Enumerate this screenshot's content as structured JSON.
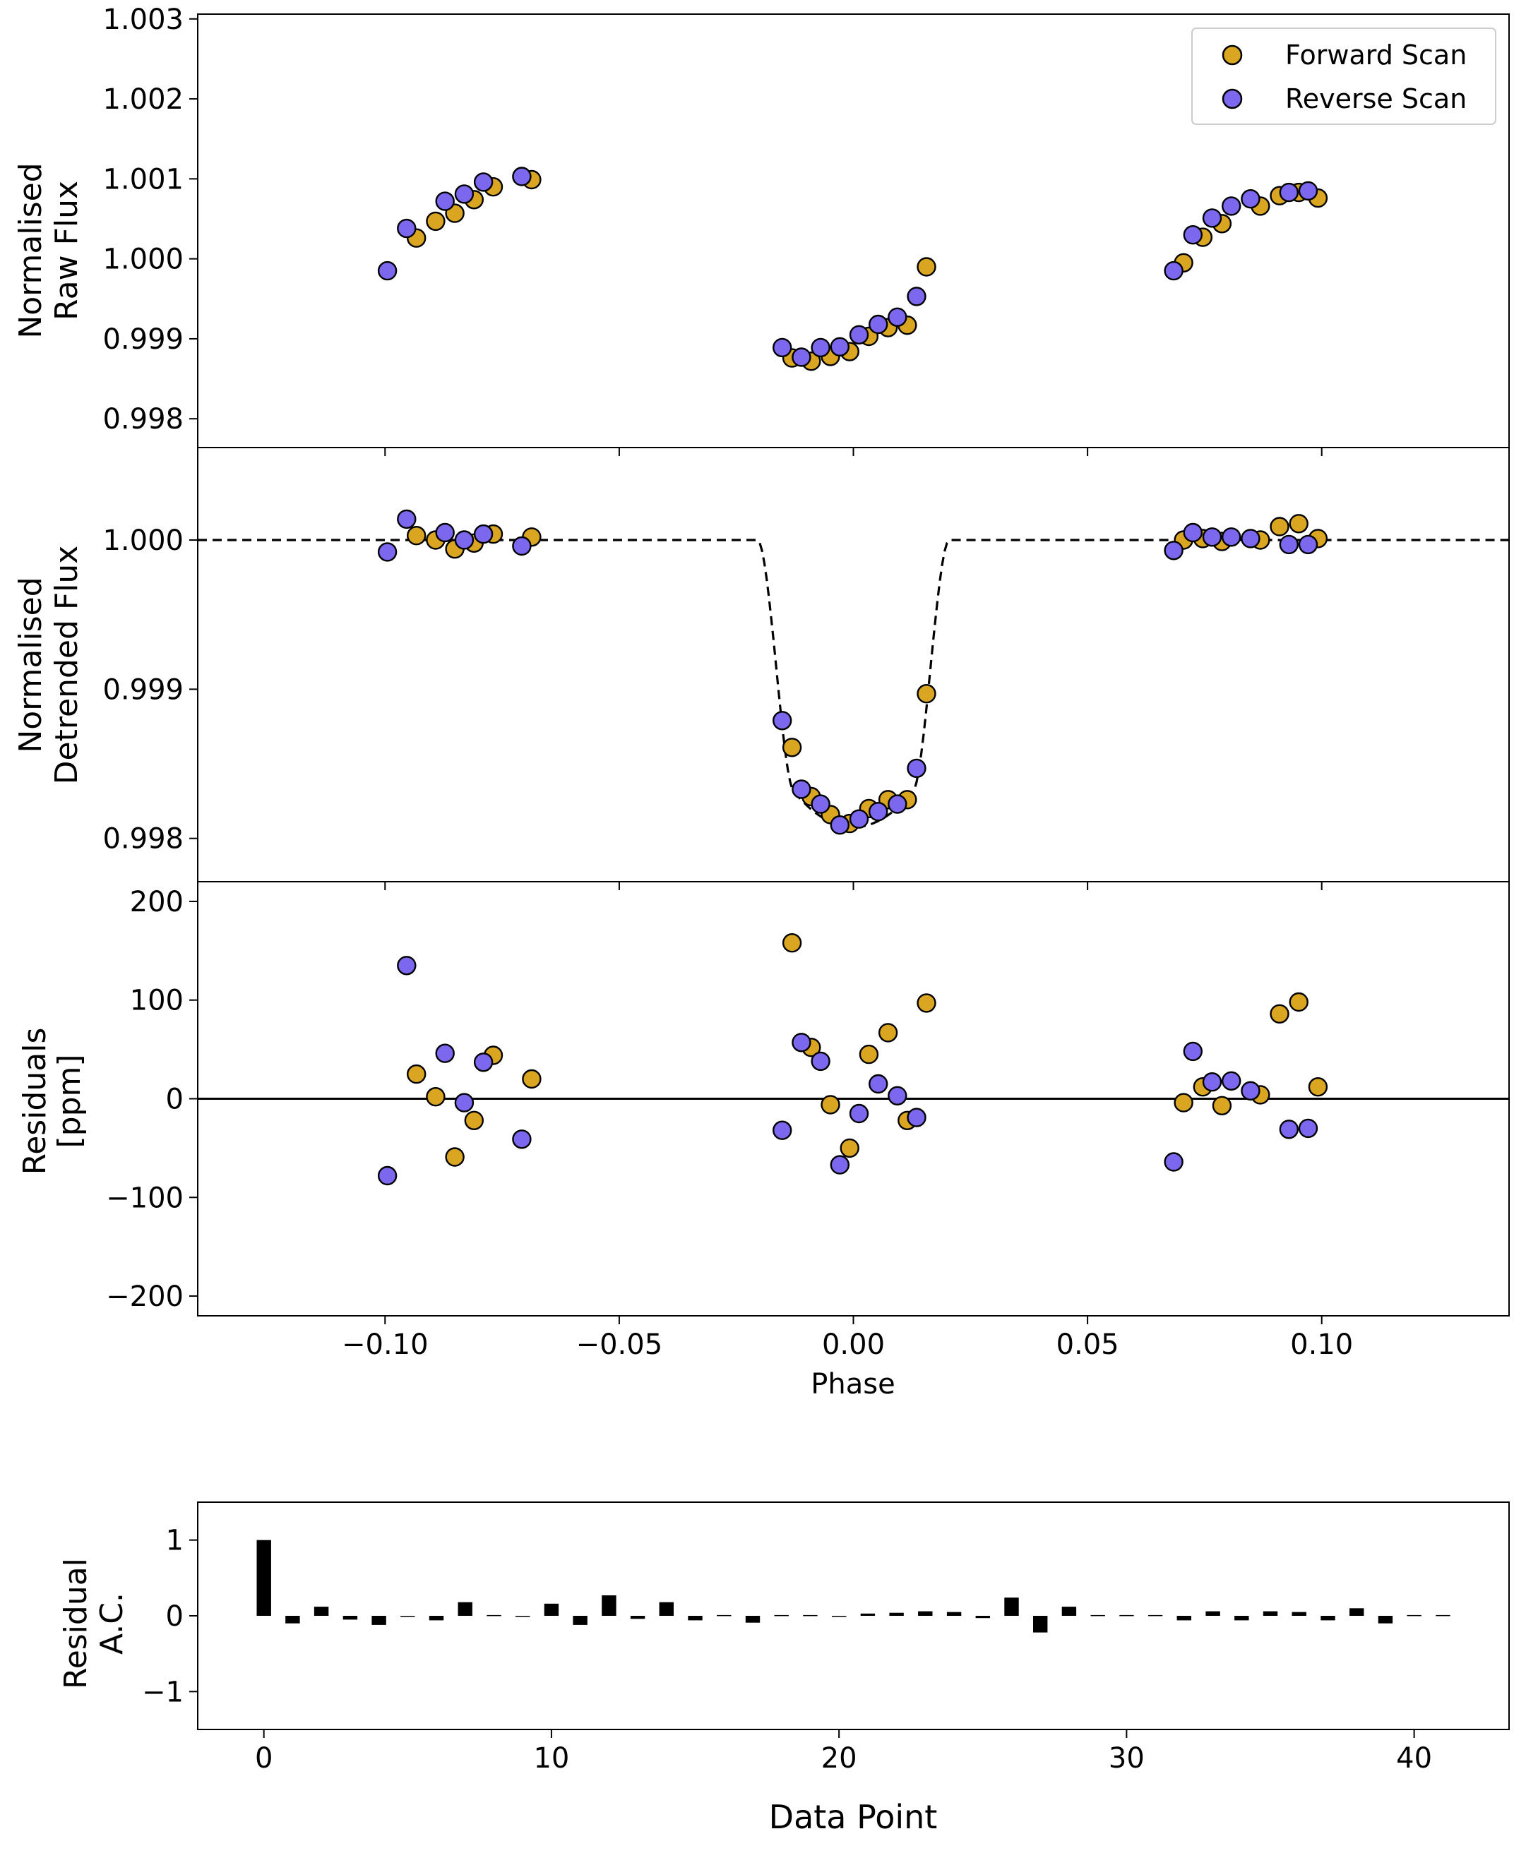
{
  "colors": {
    "forward": "#DAA520",
    "reverse": "#7B68EE",
    "model": "#000000",
    "bars": "#000000"
  },
  "chart_data": [
    {
      "type": "scatter",
      "panel": "raw_flux",
      "ylabel_lines": [
        "Normalised",
        "Raw Flux"
      ],
      "xlim": [
        -0.14,
        0.14
      ],
      "ylim": [
        0.99764,
        1.00306
      ],
      "yticks": [
        {
          "v": 0.998,
          "label": "0.998"
        },
        {
          "v": 0.999,
          "label": "0.999"
        },
        {
          "v": 1.0,
          "label": "1.000"
        },
        {
          "v": 1.001,
          "label": "1.001"
        },
        {
          "v": 1.002,
          "label": "1.002"
        },
        {
          "v": 1.003,
          "label": "1.003"
        }
      ],
      "legend": {
        "position": "top-right",
        "entries": [
          "Forward Scan",
          "Reverse Scan"
        ]
      },
      "series": [
        {
          "name": "Forward Scan",
          "points": [
            [
              -0.0933,
              1.00026
            ],
            [
              -0.0892,
              1.00047
            ],
            [
              -0.0851,
              1.00057
            ],
            [
              -0.081,
              1.00074
            ],
            [
              -0.0769,
              1.0009
            ],
            [
              -0.0687,
              1.00099
            ],
            [
              -0.0131,
              0.99876
            ],
            [
              -0.009,
              0.99872
            ],
            [
              -0.0049,
              0.99878
            ],
            [
              -0.0008,
              0.99884
            ],
            [
              0.0033,
              0.99903
            ],
            [
              0.0074,
              0.99914
            ],
            [
              0.0115,
              0.99917
            ],
            [
              0.0156,
              0.9999
            ],
            [
              0.0705,
              0.99995
            ],
            [
              0.0746,
              1.00027
            ],
            [
              0.0787,
              1.00044
            ],
            [
              0.0869,
              1.00066
            ],
            [
              0.091,
              1.00079
            ],
            [
              0.0951,
              1.00083
            ],
            [
              0.0992,
              1.00076
            ]
          ]
        },
        {
          "name": "Reverse Scan",
          "points": [
            [
              -0.0995,
              0.99985
            ],
            [
              -0.0954,
              1.00038
            ],
            [
              -0.0872,
              1.00072
            ],
            [
              -0.0831,
              1.00081
            ],
            [
              -0.079,
              1.00096
            ],
            [
              -0.0708,
              1.00103
            ],
            [
              -0.0152,
              0.99889
            ],
            [
              -0.0111,
              0.99877
            ],
            [
              -0.007,
              0.99889
            ],
            [
              -0.0029,
              0.9989
            ],
            [
              0.0012,
              0.99905
            ],
            [
              0.0053,
              0.99918
            ],
            [
              0.0094,
              0.99927
            ],
            [
              0.0135,
              0.99953
            ],
            [
              0.0684,
              0.99985
            ],
            [
              0.0725,
              1.0003
            ],
            [
              0.0766,
              1.00051
            ],
            [
              0.0807,
              1.00066
            ],
            [
              0.0848,
              1.00075
            ],
            [
              0.093,
              1.00083
            ],
            [
              0.0971,
              1.00085
            ]
          ]
        }
      ]
    },
    {
      "type": "scatter",
      "panel": "detrended_flux",
      "ylabel_lines": [
        "Normalised",
        "Detrended Flux"
      ],
      "xlim": [
        -0.14,
        0.14
      ],
      "ylim": [
        0.99771,
        1.00062
      ],
      "yticks": [
        {
          "v": 0.998,
          "label": "0.998"
        },
        {
          "v": 0.999,
          "label": "0.999"
        },
        {
          "v": 1.0,
          "label": "1.000"
        }
      ],
      "model": {
        "style": "dashed",
        "baseline": 1.0,
        "min": 0.998075,
        "ingress_start": -0.0205,
        "full_start": -0.0125,
        "full_end": 0.0125,
        "egress_end": 0.0205
      },
      "series": [
        {
          "name": "Forward Scan",
          "points": [
            [
              -0.0933,
              1.00003
            ],
            [
              -0.0892,
              1.0
            ],
            [
              -0.0851,
              0.99994
            ],
            [
              -0.081,
              0.99998
            ],
            [
              -0.0769,
              1.00004
            ],
            [
              -0.0687,
              1.00002
            ],
            [
              -0.0131,
              0.99861
            ],
            [
              -0.009,
              0.99828
            ],
            [
              -0.0049,
              0.99816
            ],
            [
              -0.0008,
              0.9981
            ],
            [
              0.0033,
              0.9982
            ],
            [
              0.0074,
              0.99826
            ],
            [
              0.0115,
              0.99826
            ],
            [
              0.0156,
              0.99897
            ],
            [
              0.0705,
              1.0
            ],
            [
              0.0746,
              1.00001
            ],
            [
              0.0787,
              0.99999
            ],
            [
              0.0869,
              1.0
            ],
            [
              0.091,
              1.00009
            ],
            [
              0.0951,
              1.00011
            ],
            [
              0.0992,
              1.00001
            ]
          ]
        },
        {
          "name": "Reverse Scan",
          "points": [
            [
              -0.0995,
              0.99992
            ],
            [
              -0.0954,
              1.00014
            ],
            [
              -0.0872,
              1.00005
            ],
            [
              -0.0831,
              1.0
            ],
            [
              -0.079,
              1.00004
            ],
            [
              -0.0708,
              0.99996
            ],
            [
              -0.0152,
              0.99879
            ],
            [
              -0.0111,
              0.99833
            ],
            [
              -0.007,
              0.99823
            ],
            [
              -0.0029,
              0.99809
            ],
            [
              0.0012,
              0.99813
            ],
            [
              0.0053,
              0.99818
            ],
            [
              0.0094,
              0.99823
            ],
            [
              0.0135,
              0.99847
            ],
            [
              0.0684,
              0.99993
            ],
            [
              0.0725,
              1.00005
            ],
            [
              0.0766,
              1.00002
            ],
            [
              0.0807,
              1.00002
            ],
            [
              0.0848,
              1.00001
            ],
            [
              0.093,
              0.99997
            ],
            [
              0.0971,
              0.99997
            ]
          ]
        }
      ]
    },
    {
      "type": "scatter",
      "panel": "residuals",
      "ylabel_lines": [
        "Residuals",
        "[ppm]"
      ],
      "xlabel": "Phase",
      "xlim": [
        -0.14,
        0.14
      ],
      "ylim": [
        -220,
        220
      ],
      "yticks": [
        {
          "v": -200,
          "label": "−200"
        },
        {
          "v": -100,
          "label": "−100"
        },
        {
          "v": 0,
          "label": "0"
        },
        {
          "v": 100,
          "label": "100"
        },
        {
          "v": 200,
          "label": "200"
        }
      ],
      "xticks": [
        {
          "v": -0.1,
          "label": "−0.10"
        },
        {
          "v": -0.05,
          "label": "−0.05"
        },
        {
          "v": 0.0,
          "label": "0.00"
        },
        {
          "v": 0.05,
          "label": "0.05"
        },
        {
          "v": 0.1,
          "label": "0.10"
        }
      ],
      "zero_line": 0,
      "series": [
        {
          "name": "Forward Scan",
          "points": [
            [
              -0.0933,
              25
            ],
            [
              -0.0892,
              2
            ],
            [
              -0.0851,
              -59
            ],
            [
              -0.081,
              -22
            ],
            [
              -0.0769,
              44
            ],
            [
              -0.0687,
              20
            ],
            [
              -0.0131,
              158
            ],
            [
              -0.009,
              52
            ],
            [
              -0.0049,
              -6
            ],
            [
              -0.0008,
              -50
            ],
            [
              0.0033,
              45
            ],
            [
              0.0074,
              67
            ],
            [
              0.0115,
              -22
            ],
            [
              0.0156,
              97
            ],
            [
              0.0705,
              -4
            ],
            [
              0.0746,
              12
            ],
            [
              0.0787,
              -7
            ],
            [
              0.0869,
              4
            ],
            [
              0.091,
              86
            ],
            [
              0.0951,
              98
            ],
            [
              0.0992,
              12
            ]
          ]
        },
        {
          "name": "Reverse Scan",
          "points": [
            [
              -0.0995,
              -78
            ],
            [
              -0.0954,
              135
            ],
            [
              -0.0872,
              46
            ],
            [
              -0.0831,
              -4
            ],
            [
              -0.079,
              37
            ],
            [
              -0.0708,
              -41
            ],
            [
              -0.0152,
              -32
            ],
            [
              -0.0111,
              57
            ],
            [
              -0.007,
              38
            ],
            [
              -0.0029,
              -67
            ],
            [
              0.0012,
              -15
            ],
            [
              0.0053,
              15
            ],
            [
              0.0094,
              3
            ],
            [
              0.0135,
              -19
            ],
            [
              0.0684,
              -64
            ],
            [
              0.0725,
              48
            ],
            [
              0.0766,
              17
            ],
            [
              0.0807,
              18
            ],
            [
              0.0848,
              8
            ],
            [
              0.093,
              -31
            ],
            [
              0.0971,
              -30
            ]
          ]
        }
      ]
    },
    {
      "type": "bar",
      "panel": "autocorrelation",
      "ylabel_lines": [
        "Residual",
        "A.C."
      ],
      "xlabel": "Data Point",
      "xlim": [
        -2.3,
        43.3
      ],
      "ylim": [
        -1.5,
        1.5
      ],
      "yticks": [
        {
          "v": -1,
          "label": "−1"
        },
        {
          "v": 0,
          "label": "0"
        },
        {
          "v": 1,
          "label": "1"
        }
      ],
      "xticks": [
        {
          "v": 0,
          "label": "0"
        },
        {
          "v": 10,
          "label": "10"
        },
        {
          "v": 20,
          "label": "20"
        },
        {
          "v": 30,
          "label": "30"
        },
        {
          "v": 40,
          "label": "40"
        }
      ],
      "x": [
        0,
        1,
        2,
        3,
        4,
        5,
        6,
        7,
        8,
        9,
        10,
        11,
        12,
        13,
        14,
        15,
        16,
        17,
        18,
        19,
        20,
        21,
        22,
        23,
        24,
        25,
        26,
        27,
        28,
        29,
        30,
        31,
        32,
        33,
        34,
        35,
        36,
        37,
        38,
        39,
        40,
        41
      ],
      "values": [
        1.0,
        -0.1,
        0.12,
        -0.05,
        -0.12,
        -0.01,
        -0.06,
        0.18,
        0.01,
        -0.01,
        0.16,
        -0.12,
        0.27,
        -0.04,
        0.18,
        -0.06,
        0.01,
        -0.09,
        0.01,
        0.01,
        0.0,
        0.03,
        0.04,
        0.06,
        0.05,
        -0.03,
        0.24,
        -0.22,
        0.12,
        0.01,
        0.01,
        0.01,
        -0.06,
        0.06,
        -0.06,
        0.06,
        0.05,
        -0.06,
        0.1,
        -0.1,
        0.01,
        0.01
      ]
    }
  ]
}
